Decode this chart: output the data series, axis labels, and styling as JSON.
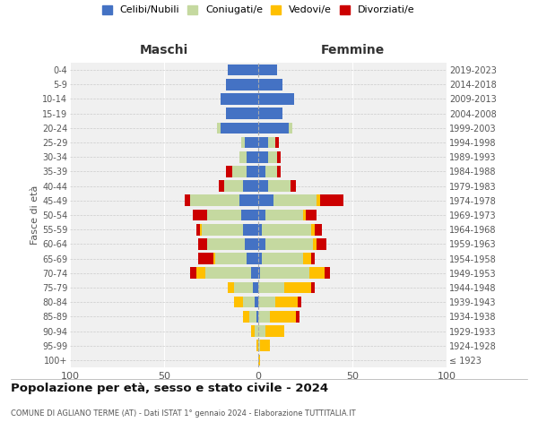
{
  "age_groups": [
    "100+",
    "95-99",
    "90-94",
    "85-89",
    "80-84",
    "75-79",
    "70-74",
    "65-69",
    "60-64",
    "55-59",
    "50-54",
    "45-49",
    "40-44",
    "35-39",
    "30-34",
    "25-29",
    "20-24",
    "15-19",
    "10-14",
    "5-9",
    "0-4"
  ],
  "birth_years": [
    "≤ 1923",
    "1924-1928",
    "1929-1933",
    "1934-1938",
    "1939-1943",
    "1944-1948",
    "1949-1953",
    "1954-1958",
    "1959-1963",
    "1964-1968",
    "1969-1973",
    "1974-1978",
    "1979-1983",
    "1984-1988",
    "1989-1993",
    "1994-1998",
    "1999-2003",
    "2004-2008",
    "2009-2013",
    "2014-2018",
    "2019-2023"
  ],
  "colors": {
    "celibi": "#4472c4",
    "coniugati": "#c5d9a0",
    "vedovi": "#ffc000",
    "divorziati": "#cc0000"
  },
  "males": {
    "celibi": [
      0,
      0,
      0,
      1,
      2,
      3,
      4,
      6,
      7,
      8,
      9,
      10,
      8,
      6,
      6,
      7,
      20,
      17,
      20,
      17,
      16
    ],
    "coniugati": [
      0,
      0,
      2,
      4,
      6,
      10,
      24,
      17,
      20,
      22,
      18,
      26,
      10,
      8,
      4,
      2,
      2,
      0,
      0,
      0,
      0
    ],
    "vedovi": [
      0,
      1,
      2,
      3,
      5,
      3,
      5,
      1,
      0,
      1,
      0,
      0,
      0,
      0,
      0,
      0,
      0,
      0,
      0,
      0,
      0
    ],
    "divorziati": [
      0,
      0,
      0,
      0,
      0,
      0,
      3,
      8,
      5,
      2,
      8,
      3,
      3,
      3,
      0,
      0,
      0,
      0,
      0,
      0,
      0
    ]
  },
  "females": {
    "celibi": [
      0,
      0,
      0,
      0,
      0,
      0,
      1,
      2,
      4,
      2,
      4,
      8,
      5,
      4,
      5,
      5,
      16,
      13,
      19,
      13,
      10
    ],
    "coniugati": [
      0,
      1,
      4,
      6,
      9,
      14,
      26,
      22,
      25,
      26,
      20,
      23,
      12,
      6,
      5,
      4,
      2,
      0,
      0,
      0,
      0
    ],
    "vedovi": [
      1,
      5,
      10,
      14,
      12,
      14,
      8,
      4,
      2,
      2,
      1,
      2,
      0,
      0,
      0,
      0,
      0,
      0,
      0,
      0,
      0
    ],
    "divorziati": [
      0,
      0,
      0,
      2,
      2,
      2,
      3,
      2,
      5,
      4,
      6,
      12,
      3,
      2,
      2,
      2,
      0,
      0,
      0,
      0,
      0
    ]
  },
  "title": "Popolazione per età, sesso e stato civile - 2024",
  "subtitle": "COMUNE DI AGLIANO TERME (AT) - Dati ISTAT 1° gennaio 2024 - Elaborazione TUTTITALIA.IT",
  "ylabel_left": "Fasce di età",
  "xlabel_maschi": "Maschi",
  "xlabel_femmine": "Femmine",
  "legend_labels": [
    "Celibi/Nubili",
    "Coniugati/e",
    "Vedovi/e",
    "Divorziati/e"
  ],
  "xlim": 100,
  "bg_color": "#f0f0f0",
  "bar_height": 0.78
}
